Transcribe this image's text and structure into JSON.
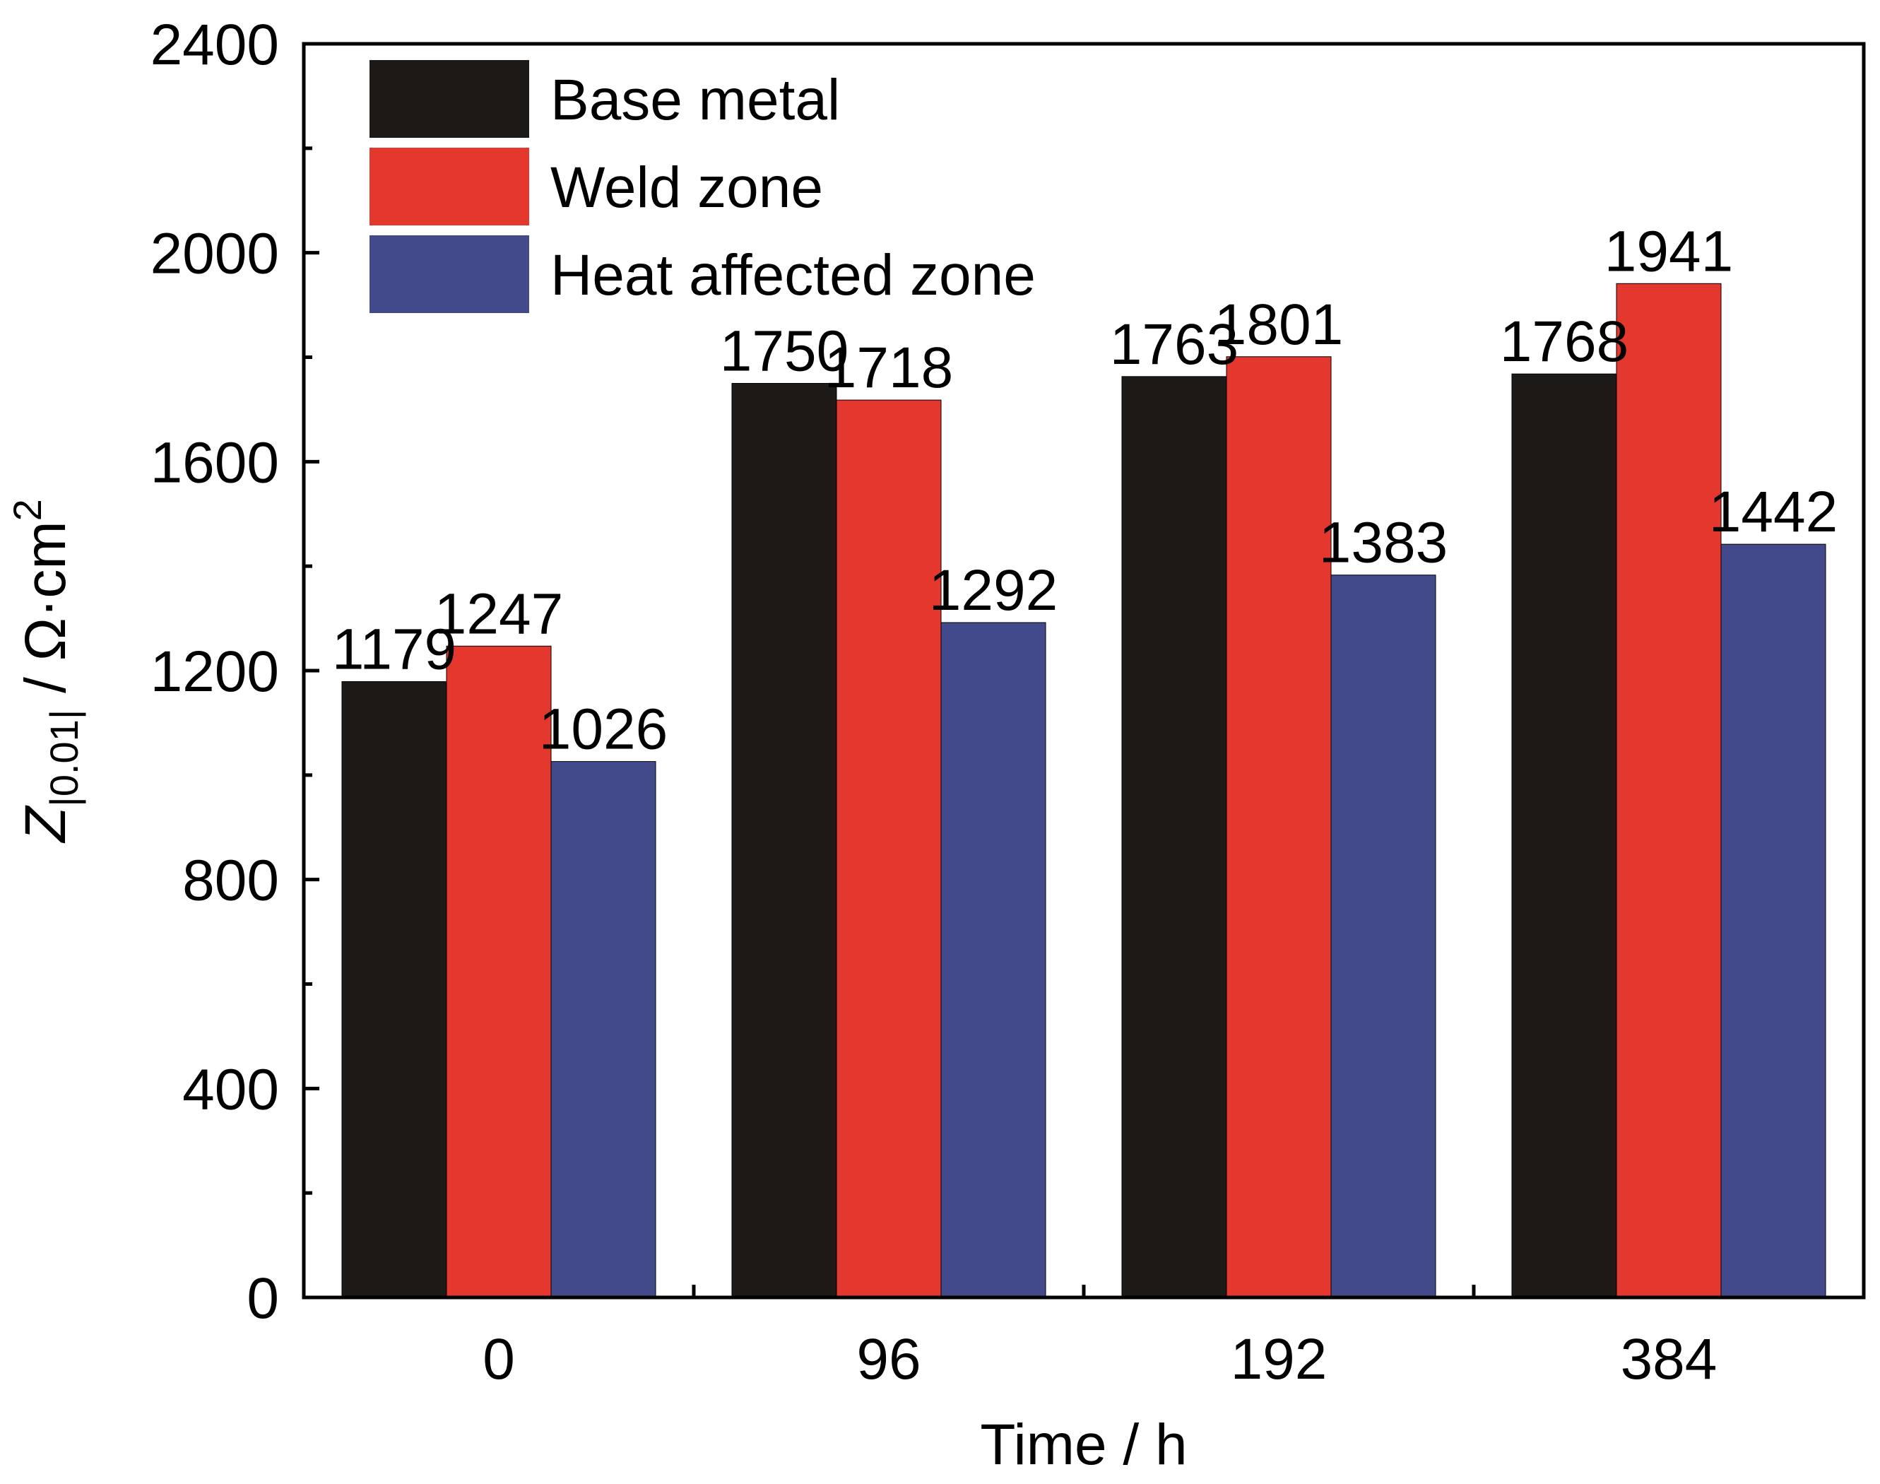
{
  "chart_data": {
    "type": "bar",
    "categories": [
      "0",
      "96",
      "192",
      "384"
    ],
    "series": [
      {
        "name": "Base metal",
        "color": "#1c1917",
        "values": [
          1179,
          1750,
          1763,
          1768
        ]
      },
      {
        "name": "Weld zone",
        "color": "#e4382f",
        "values": [
          1247,
          1718,
          1801,
          1941
        ]
      },
      {
        "name": "Heat affected zone",
        "color": "#424a8c",
        "values": [
          1026,
          1292,
          1383,
          1442
        ]
      }
    ],
    "xlabel": "Time / h",
    "ylabel": {
      "prefix": "Z",
      "subscript": "|0.01|",
      "unit": " / Ω·cm",
      "superscript": "2"
    },
    "ylim": [
      0,
      2400
    ],
    "yticks": [
      "0",
      "400",
      "800",
      "1200",
      "1600",
      "2000",
      "2400"
    ],
    "legend_position": "top-left",
    "grid": false
  }
}
